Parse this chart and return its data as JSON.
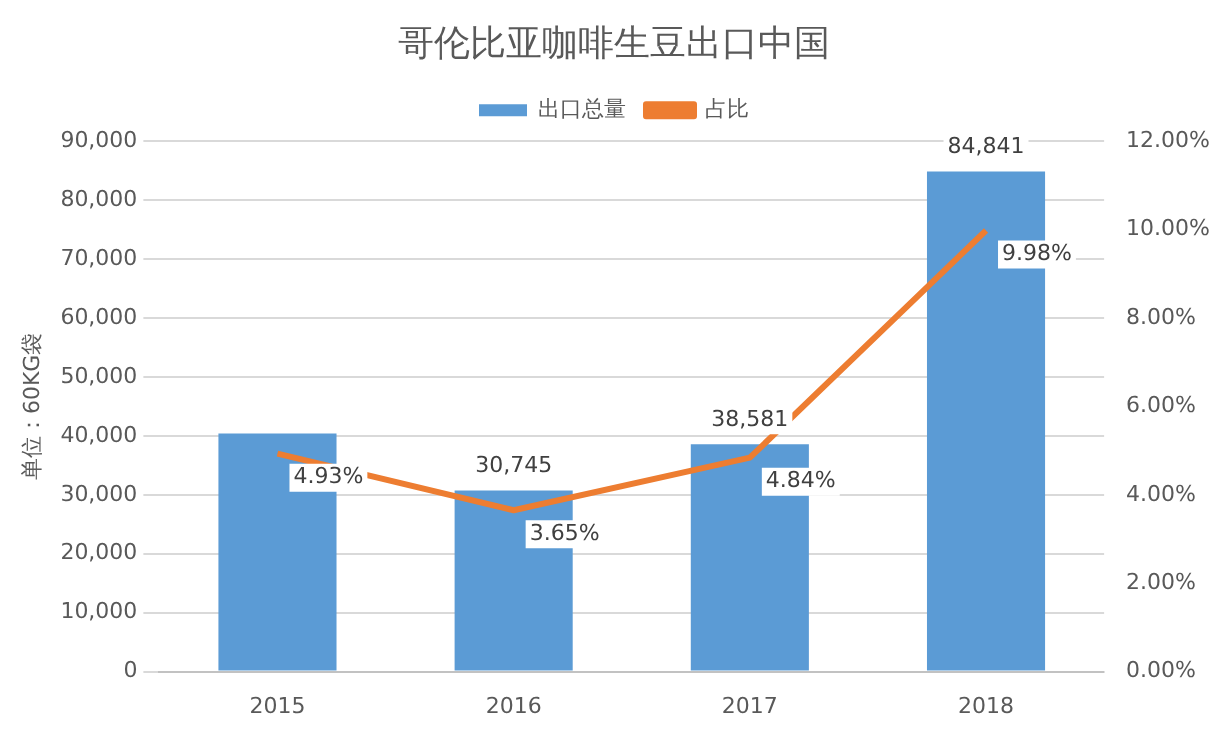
{
  "chart_data": {
    "type": "bar",
    "title": "哥伦比亚咖啡生豆出口中国",
    "ylabel": "单位：60KG袋",
    "categories": [
      "2015",
      "2016",
      "2017",
      "2018"
    ],
    "series": [
      {
        "name": "出口总量",
        "color": "#5b9bd5",
        "values": [
          40400,
          30745,
          38581,
          84841
        ],
        "value_labels": [
          null,
          "30,745",
          "38,581",
          "84,841"
        ]
      },
      {
        "name": "占比",
        "type": "line",
        "axis": "y2",
        "color": "#ed7d31",
        "values": [
          4.93,
          3.65,
          4.84,
          9.98
        ],
        "value_labels": [
          "4.93%",
          "3.65%",
          "4.84%",
          "9.98%"
        ]
      }
    ],
    "ylim": [
      0,
      90000
    ],
    "yticks": [
      {
        "value": 0,
        "label": "0"
      },
      {
        "value": 10000,
        "label": "10,000"
      },
      {
        "value": 20000,
        "label": "20,000"
      },
      {
        "value": 30000,
        "label": "30,000"
      },
      {
        "value": 40000,
        "label": "40,000"
      },
      {
        "value": 50000,
        "label": "50,000"
      },
      {
        "value": 60000,
        "label": "60,000"
      },
      {
        "value": 70000,
        "label": "70,000"
      },
      {
        "value": 80000,
        "label": "80,000"
      },
      {
        "value": 90000,
        "label": "90,000"
      }
    ],
    "y2lim": [
      0,
      12
    ],
    "y2ticks": [
      {
        "value": 0,
        "label": "0.00%"
      },
      {
        "value": 2,
        "label": "2.00%"
      },
      {
        "value": 4,
        "label": "4.00%"
      },
      {
        "value": 6,
        "label": "6.00%"
      },
      {
        "value": 8,
        "label": "8.00%"
      },
      {
        "value": 10,
        "label": "10.00%"
      },
      {
        "value": 12,
        "label": "12.00%"
      }
    ],
    "grid": "y",
    "legend": "top",
    "marker": "none",
    "line_style": "solid"
  }
}
